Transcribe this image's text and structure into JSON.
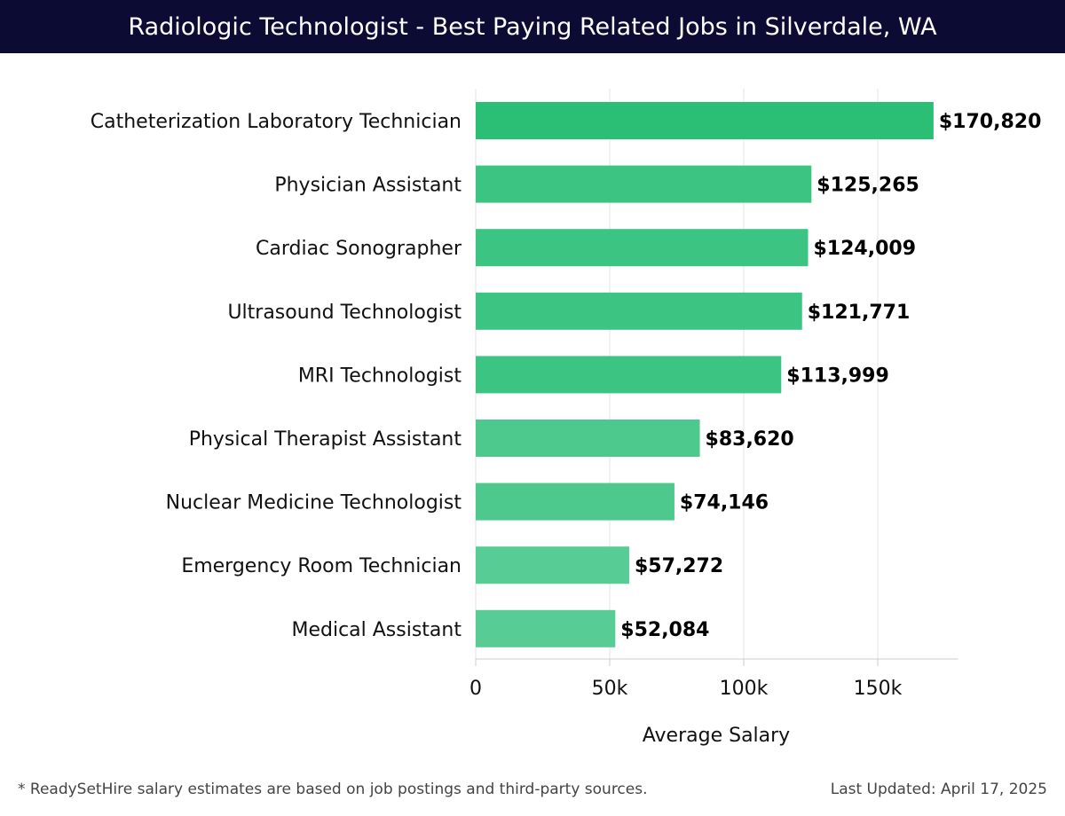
{
  "header": {
    "title": "Radiologic Technologist - Best Paying Related Jobs in Silverdale, WA"
  },
  "chart_data": {
    "type": "bar",
    "orientation": "horizontal",
    "title": "Radiologic Technologist - Best Paying Related Jobs in Silverdale, WA",
    "xlabel": "Average Salary",
    "ylabel": "",
    "xlim": [
      0,
      180000
    ],
    "xticks": [
      0,
      50000,
      100000,
      150000
    ],
    "xtick_labels": [
      "0",
      "50k",
      "100k",
      "150k"
    ],
    "grid": true,
    "categories": [
      "Catheterization Laboratory Technician",
      "Physician Assistant",
      "Cardiac Sonographer",
      "Ultrasound Technologist",
      "MRI Technologist",
      "Physical Therapist Assistant",
      "Nuclear Medicine Technologist",
      "Emergency Room Technician",
      "Medical Assistant"
    ],
    "values": [
      170820,
      125265,
      124009,
      121771,
      113999,
      83620,
      74146,
      57272,
      52084
    ],
    "value_labels": [
      "$170,820",
      "$125,265",
      "$124,009",
      "$121,771",
      "$113,999",
      "$83,620",
      "$74,146",
      "$57,272",
      "$52,084"
    ],
    "bar_colors": [
      "#2bbf75",
      "#3cc483",
      "#3cc483",
      "#3cc483",
      "#3cc483",
      "#4dc98e",
      "#4dc98e",
      "#57cc95",
      "#57cc95"
    ]
  },
  "footer": {
    "note": "* ReadySetHire salary estimates are based on job postings and third-party sources.",
    "updated": "Last Updated: April 17, 2025"
  }
}
